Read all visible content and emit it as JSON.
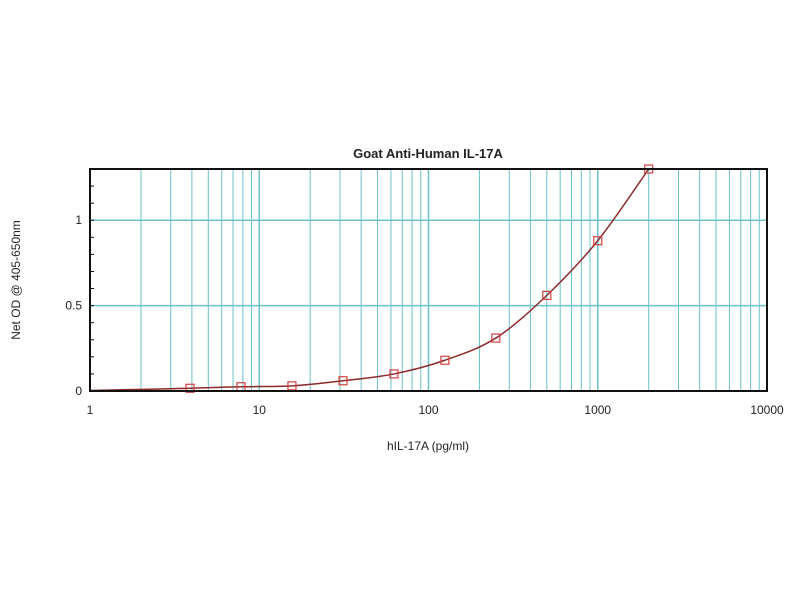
{
  "chart_data": {
    "type": "line",
    "title": "Goat Anti-Human IL-17A",
    "xlabel": "hIL-17A (pg/ml)",
    "ylabel": "Net OD @ 405-650nm",
    "xscale": "log",
    "xlim": [
      1,
      10000
    ],
    "ylim": [
      0,
      1.3
    ],
    "x_ticks": [
      "1",
      "10",
      "100",
      "1000",
      "10000"
    ],
    "y_ticks": [
      "0",
      "0.5",
      "1"
    ],
    "grid": true,
    "marker": "square",
    "colors": {
      "grid": "#6cc0c8",
      "line": "#8b2a2a",
      "marker": "#d04040",
      "frame": "#111111"
    },
    "series": [
      {
        "x": [
          3.9,
          7.8,
          15.6,
          31.25,
          62.5,
          125,
          250,
          500,
          1000,
          2000
        ],
        "y": [
          0.016,
          0.025,
          0.03,
          0.06,
          0.1,
          0.18,
          0.31,
          0.56,
          0.88,
          1.3
        ]
      }
    ]
  }
}
